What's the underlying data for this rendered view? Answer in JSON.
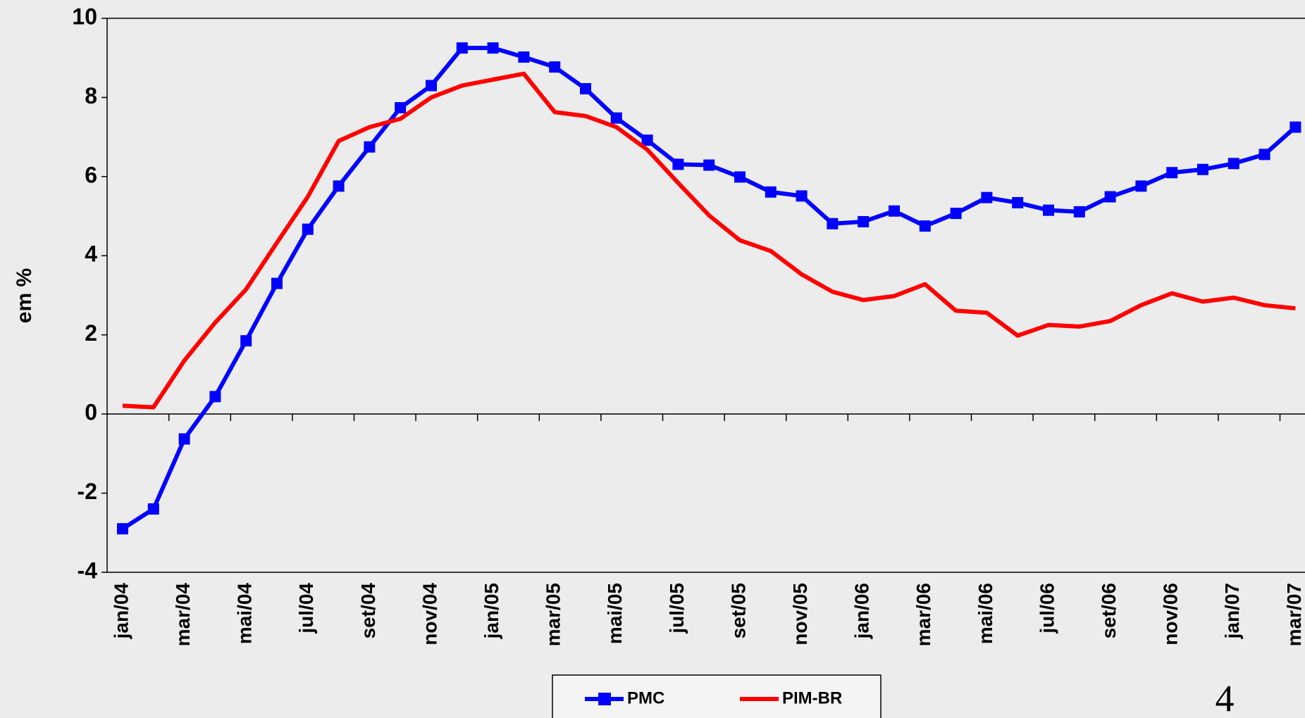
{
  "chart_data": {
    "type": "line",
    "y_label": "em %",
    "categories": [
      "jan/04",
      null,
      "mar/04",
      null,
      "mai/04",
      null,
      "jul/04",
      null,
      "set/04",
      null,
      "nov/04",
      null,
      "jan/05",
      null,
      "mar/05",
      null,
      "mai/05",
      null,
      "jul/05",
      null,
      "set/05",
      null,
      "nov/05",
      null,
      "jan/06",
      null,
      "mar/06",
      null,
      "mai/06",
      null,
      "jul/06",
      null,
      "set/06",
      null,
      "nov/06",
      null,
      "jan/07",
      null,
      "mar/07"
    ],
    "series": [
      {
        "name": "PMC",
        "color": "#0000ff",
        "marker": "square",
        "values": [
          -2.9,
          -2.4,
          -0.63,
          0.44,
          1.85,
          3.3,
          4.67,
          5.76,
          6.75,
          7.74,
          8.3,
          9.25,
          9.25,
          9.02,
          8.77,
          8.22,
          7.48,
          6.92,
          6.31,
          6.29,
          5.99,
          5.61,
          5.51,
          4.81,
          4.86,
          5.13,
          4.75,
          5.07,
          5.47,
          5.34,
          5.15,
          5.11,
          5.49,
          5.76,
          6.1,
          6.18,
          6.33,
          6.56,
          7.25
        ]
      },
      {
        "name": "PIM-BR",
        "color": "#ff0000",
        "marker": "none",
        "values": [
          0.21,
          0.17,
          1.35,
          2.31,
          3.15,
          4.33,
          5.49,
          6.9,
          7.25,
          7.46,
          8.0,
          8.3,
          8.45,
          8.6,
          7.63,
          7.53,
          7.25,
          6.68,
          5.84,
          5.02,
          4.39,
          4.12,
          3.53,
          3.09,
          2.88,
          2.98,
          3.28,
          2.61,
          2.56,
          1.98,
          2.25,
          2.21,
          2.35,
          2.75,
          3.05,
          2.84,
          2.94,
          2.75,
          2.67
        ]
      }
    ],
    "ylim": [
      -4,
      10
    ],
    "yticks": [
      -4,
      -2,
      0,
      2,
      4,
      6,
      8,
      10
    ],
    "legend": "bottom",
    "page_number": "4"
  }
}
